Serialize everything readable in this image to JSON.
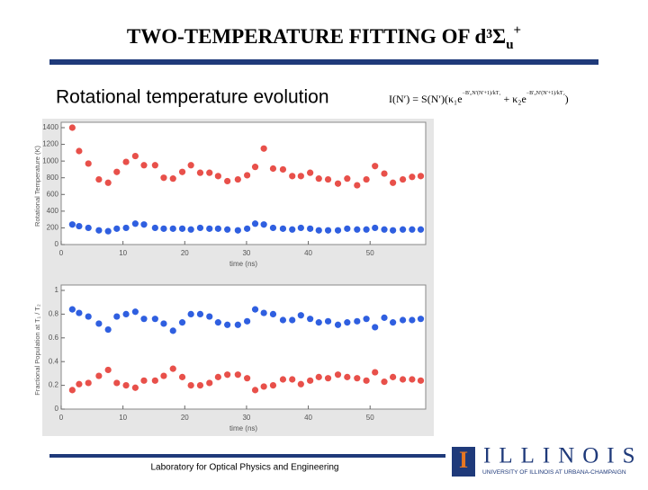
{
  "header": {
    "title": "TWO-TEMPERATURE FITTING OF d³Σ",
    "title_sub": "u",
    "title_sup": "+"
  },
  "subtitle": "Rotational temperature evolution",
  "equation": {
    "lhs": "I(N′) = S(N′)(κ₁e",
    "exp1": "−B′₀N′(N′+1)/kT₁",
    "mid": " + κ₂e",
    "exp2": "−B′₀N′(N′+1)/kT₂",
    "end": ")"
  },
  "footer": "Laboratory for Optical Physics and Engineering",
  "logo": {
    "mark": "I",
    "name": "ILLINOIS",
    "tagline": "UNIVERSITY OF ILLINOIS AT URBANA-CHAMPAIGN"
  },
  "chart_data": [
    {
      "type": "scatter",
      "xlabel": "time (ns)",
      "ylabel": "Rotational Temperature (K)",
      "xlim": [
        0,
        59
      ],
      "xticks": [
        0,
        10,
        20,
        30,
        40,
        50
      ],
      "ylim": [
        0,
        1400
      ],
      "yticks": [
        0,
        200,
        400,
        600,
        800,
        1000,
        1200,
        1400
      ],
      "x": [
        1.8,
        2.9,
        4.4,
        6.1,
        7.6,
        9.0,
        10.5,
        12.0,
        13.4,
        15.2,
        16.6,
        18.1,
        19.6,
        21.0,
        22.5,
        24.0,
        25.4,
        26.9,
        28.6,
        30.1,
        31.4,
        32.8,
        34.3,
        35.9,
        37.4,
        38.8,
        40.3,
        41.7,
        43.2,
        44.8,
        46.3,
        47.9,
        49.4,
        50.8,
        52.3,
        53.7,
        55.3,
        56.8,
        58.2
      ],
      "series": [
        {
          "color": "#e8504a",
          "values": [
            1400,
            1120,
            970,
            780,
            740,
            870,
            990,
            1060,
            950,
            950,
            800,
            790,
            870,
            950,
            860,
            860,
            820,
            760,
            780,
            830,
            930,
            1150,
            910,
            900,
            820,
            820,
            860,
            790,
            780,
            730,
            790,
            710,
            780,
            940,
            850,
            740,
            780,
            810,
            820
          ]
        },
        {
          "color": "#2f5fe0",
          "values": [
            240,
            220,
            200,
            170,
            160,
            190,
            200,
            250,
            240,
            200,
            190,
            190,
            190,
            180,
            200,
            190,
            190,
            180,
            170,
            190,
            250,
            240,
            200,
            190,
            180,
            200,
            190,
            170,
            170,
            170,
            190,
            180,
            180,
            200,
            180,
            170,
            180,
            180,
            180
          ]
        }
      ]
    },
    {
      "type": "scatter",
      "xlabel": "time (ns)",
      "ylabel": "Fractional Population at T₁ / T₂",
      "xlim": [
        0,
        59
      ],
      "xticks": [
        0,
        10,
        20,
        30,
        40,
        50
      ],
      "ylim": [
        0,
        1
      ],
      "yticks": [
        0,
        0.2,
        0.4,
        0.6,
        0.8,
        1
      ],
      "x": [
        1.8,
        2.9,
        4.4,
        6.1,
        7.6,
        9.0,
        10.5,
        12.0,
        13.4,
        15.2,
        16.6,
        18.1,
        19.6,
        21.0,
        22.5,
        24.0,
        25.4,
        26.9,
        28.6,
        30.1,
        31.4,
        32.8,
        34.3,
        35.9,
        37.4,
        38.8,
        40.3,
        41.7,
        43.2,
        44.8,
        46.3,
        47.9,
        49.4,
        50.8,
        52.3,
        53.7,
        55.3,
        56.8,
        58.2
      ],
      "series": [
        {
          "color": "#2f5fe0",
          "values": [
            0.84,
            0.81,
            0.78,
            0.72,
            0.67,
            0.78,
            0.8,
            0.82,
            0.76,
            0.76,
            0.72,
            0.66,
            0.73,
            0.8,
            0.8,
            0.78,
            0.73,
            0.71,
            0.71,
            0.74,
            0.84,
            0.81,
            0.8,
            0.75,
            0.75,
            0.79,
            0.76,
            0.73,
            0.74,
            0.71,
            0.73,
            0.74,
            0.76,
            0.69,
            0.77,
            0.73,
            0.75,
            0.75,
            0.76
          ]
        },
        {
          "color": "#e8504a",
          "values": [
            0.16,
            0.21,
            0.22,
            0.28,
            0.33,
            0.22,
            0.2,
            0.18,
            0.24,
            0.24,
            0.28,
            0.34,
            0.27,
            0.2,
            0.2,
            0.22,
            0.27,
            0.29,
            0.29,
            0.26,
            0.16,
            0.19,
            0.2,
            0.25,
            0.25,
            0.21,
            0.24,
            0.27,
            0.26,
            0.29,
            0.27,
            0.26,
            0.24,
            0.31,
            0.23,
            0.27,
            0.25,
            0.25,
            0.24
          ]
        }
      ]
    }
  ]
}
